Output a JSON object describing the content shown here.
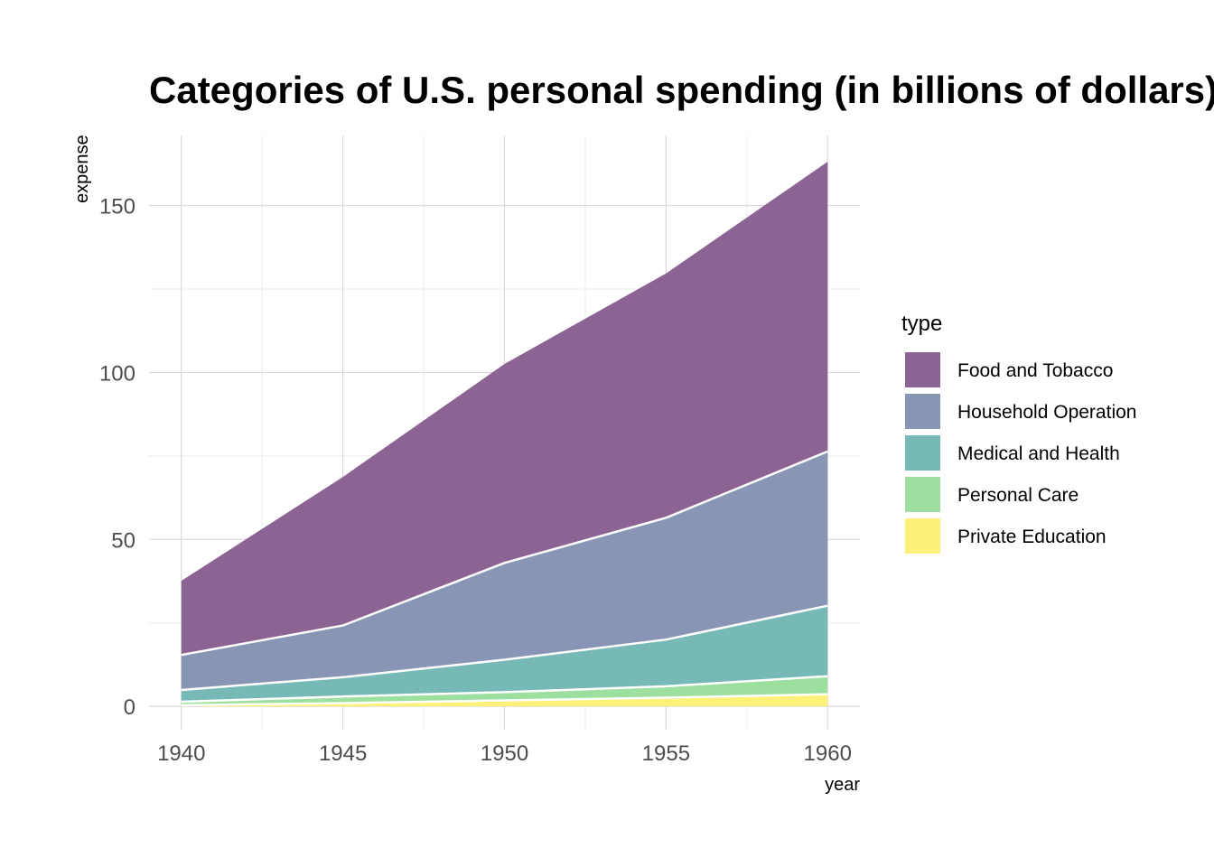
{
  "chart_data": {
    "type": "area",
    "stacked": true,
    "title": "Categories of U.S. personal spending (in billions of dollars)",
    "xlabel": "year",
    "ylabel": "expense",
    "x": [
      1940,
      1945,
      1950,
      1955,
      1960
    ],
    "x_ticks": [
      "1940",
      "1945",
      "1950",
      "1955",
      "1960"
    ],
    "y_ticks": [
      "0",
      "50",
      "100",
      "150"
    ],
    "y_tick_values": [
      0,
      50,
      100,
      150
    ],
    "xlim": [
      1939,
      1961
    ],
    "ylim": [
      -7,
      171
    ],
    "grid": true,
    "legend_title": "type",
    "legend_position": "right",
    "series": [
      {
        "name": "Food and Tobacco",
        "color": "#8b6493",
        "values": [
          22.2,
          44.5,
          59.6,
          73.2,
          86.8
        ]
      },
      {
        "name": "Household Operation",
        "color": "#8895b4",
        "values": [
          10.5,
          15.5,
          29.0,
          36.5,
          46.2
        ]
      },
      {
        "name": "Medical and Health",
        "color": "#76b9b6",
        "values": [
          3.53,
          5.76,
          9.71,
          14.0,
          21.1
        ]
      },
      {
        "name": "Personal Care",
        "color": "#9ddf9e",
        "values": [
          1.04,
          1.98,
          2.45,
          3.4,
          5.4
        ]
      },
      {
        "name": "Private Education",
        "color": "#fef17a",
        "values": [
          0.341,
          0.974,
          1.8,
          2.6,
          3.64
        ]
      }
    ]
  }
}
